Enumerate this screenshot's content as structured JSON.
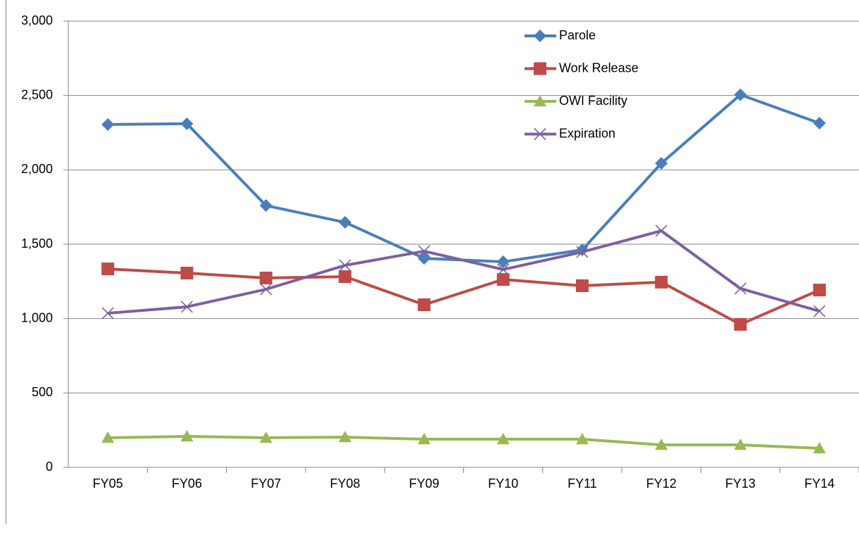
{
  "chart_data": {
    "type": "line",
    "categories": [
      "FY05",
      "FY06",
      "FY07",
      "FY08",
      "FY09",
      "FY10",
      "FY11",
      "FY12",
      "FY13",
      "FY14"
    ],
    "series": [
      {
        "name": "Parole",
        "color": "#4a7ebb",
        "marker": "diamond",
        "values": [
          2305,
          2310,
          1760,
          1647,
          1405,
          1382,
          1462,
          2044,
          2505,
          2314
        ]
      },
      {
        "name": "Work Release",
        "color": "#be4b48",
        "marker": "square",
        "values": [
          1334,
          1306,
          1273,
          1282,
          1093,
          1263,
          1221,
          1245,
          961,
          1192
        ]
      },
      {
        "name": "OWI Facility",
        "color": "#98b954",
        "marker": "triangle",
        "values": [
          199,
          208,
          199,
          203,
          189,
          189,
          189,
          151,
          151,
          128
        ]
      },
      {
        "name": "Expiration",
        "color": "#7d60a0",
        "marker": "x",
        "values": [
          1036,
          1079,
          1197,
          1358,
          1453,
          1330,
          1448,
          1590,
          1202,
          1050
        ]
      }
    ],
    "ylim": [
      0,
      3000
    ],
    "yticks": [
      0,
      500,
      {
        "value": 1000,
        "label": "1,000"
      },
      {
        "value": 1500,
        "label": "1,500"
      },
      {
        "value": 2000,
        "label": "2,000"
      },
      {
        "value": 2500,
        "label": "2,500"
      },
      {
        "value": 3000,
        "label": "3,000"
      }
    ],
    "grid": true,
    "legend": "top-right"
  }
}
